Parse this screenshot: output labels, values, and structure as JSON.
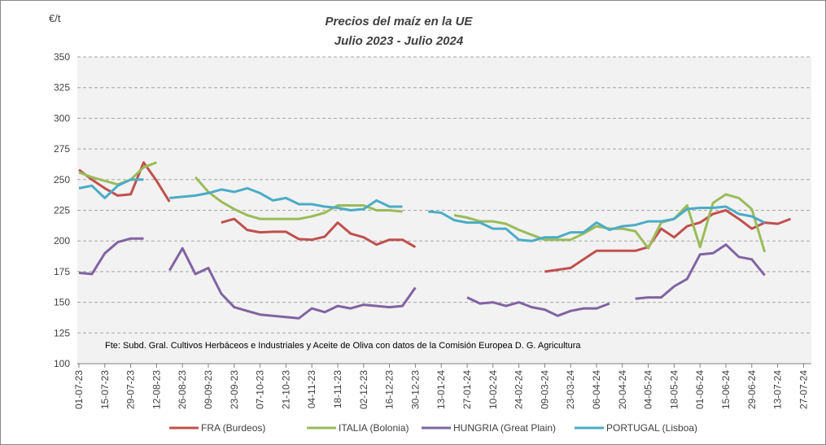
{
  "chart_data": {
    "type": "line",
    "title": "Precios del maíz en la UE",
    "subtitle": "Julio 2023 - Julio 2024",
    "y_label": "€/t",
    "annotation": "Fte: Subd. Gral. Cultivos Herbáceos e Industriales y Aceite de Oliva con datos de la Comisión Europea D. G. Agricultura",
    "categories": [
      "01-07-23",
      null,
      "15-07-23",
      null,
      "29-07-23",
      null,
      "12-08-23",
      null,
      "26-08-23",
      null,
      "09-09-23",
      null,
      "23-09-23",
      null,
      "07-10-23",
      null,
      "21-10-23",
      null,
      "04-11-23",
      null,
      "18-11-23",
      null,
      "02-12-23",
      null,
      "16-12-23",
      null,
      "30-12-23",
      null,
      "13-01-24",
      null,
      "27-01-24",
      null,
      "10-02-24",
      null,
      "24-02-24",
      null,
      "09-03-24",
      null,
      "23-03-24",
      null,
      "06-04-24",
      null,
      "20-04-24",
      null,
      "04-05-24",
      null,
      "18-05-24",
      null,
      "01-06-24",
      null,
      "15-06-24",
      null,
      "29-06-24",
      null,
      "13-07-24",
      null,
      "27-07-24"
    ],
    "series": [
      {
        "name": "FRA (Burdeos)",
        "color": "#c0504d",
        "values": [
          258,
          250,
          243,
          237,
          238,
          264,
          249,
          232,
          null,
          null,
          null,
          215,
          218,
          209,
          207,
          207.5,
          207.5,
          201.5,
          201,
          203.5,
          215,
          206,
          203,
          197,
          201,
          201,
          195,
          null,
          null,
          null,
          null,
          null,
          null,
          null,
          null,
          null,
          175,
          176.5,
          178,
          185,
          192,
          192,
          192,
          192,
          195,
          210,
          203,
          212,
          215,
          222,
          225,
          218,
          210,
          215,
          214,
          218,
          null
        ]
      },
      {
        "name": "ITALIA (Bolonia)",
        "color": "#9bbb59",
        "values": [
          256,
          252,
          249,
          246,
          250,
          260,
          264,
          null,
          null,
          252,
          240,
          232,
          226,
          221,
          218,
          218,
          218,
          218,
          220,
          223,
          229,
          229,
          229,
          225,
          225,
          224,
          null,
          null,
          null,
          221,
          219,
          216,
          216,
          214,
          209,
          205,
          201,
          201,
          201,
          206,
          212,
          210,
          210,
          208,
          194,
          215,
          218,
          229,
          195,
          231,
          238,
          235,
          226,
          191,
          null,
          null,
          null
        ]
      },
      {
        "name": "HUNGRIA (Great Plain)",
        "color": "#8064a2",
        "values": [
          174,
          173,
          190,
          199,
          202,
          202,
          null,
          176,
          194,
          173,
          178,
          157,
          146,
          143,
          140,
          139,
          138,
          137,
          145,
          142,
          147,
          145,
          148,
          147,
          146,
          147,
          162,
          null,
          null,
          null,
          154,
          149,
          150,
          147,
          150,
          146,
          144,
          139,
          143,
          145,
          145,
          149,
          null,
          153,
          154,
          154,
          163,
          169,
          189,
          190,
          197,
          187,
          185,
          172,
          null,
          null,
          null
        ]
      },
      {
        "name": "PORTUGAL (Lisboa)",
        "color": "#4bacc6",
        "values": [
          243,
          245,
          235,
          245,
          250,
          250,
          null,
          235,
          236,
          237,
          239,
          242,
          240,
          243,
          239,
          233,
          235,
          230,
          230,
          228,
          227,
          225,
          226,
          233,
          228,
          228,
          null,
          224,
          223,
          217,
          215,
          215,
          210,
          210,
          201,
          200,
          203,
          203,
          207,
          207,
          215,
          209,
          212,
          213,
          216,
          216,
          218,
          226,
          227,
          227,
          228,
          222,
          220,
          215,
          null,
          null,
          null
        ]
      }
    ],
    "ylim": [
      100,
      350
    ],
    "yticks": [
      100,
      125,
      150,
      175,
      200,
      225,
      250,
      275,
      300,
      325,
      350
    ],
    "grid": true
  }
}
